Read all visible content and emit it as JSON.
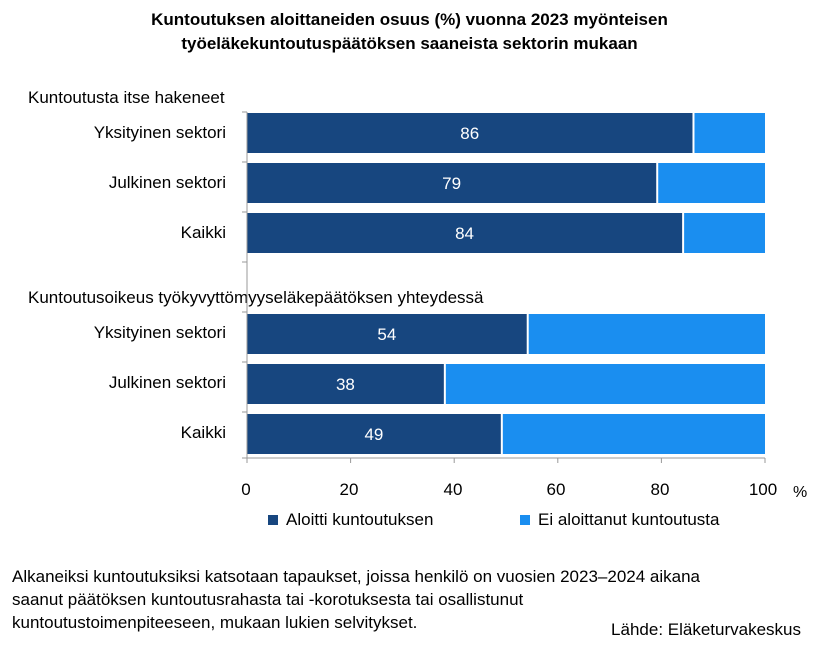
{
  "chart_data": {
    "type": "bar",
    "orientation": "horizontal",
    "stacked": true,
    "title": "Kuntoutuksen aloittaneiden osuus (%) vuonna 2023 myönteisen työeläkekuntoutuspäätöksen saaneista sektorin mukaan",
    "title_lines": [
      "Kuntoutuksen aloittaneiden osuus (%) vuonna 2023 myönteisen",
      "työeläkekuntoutuspäätöksen saaneista sektorin mukaan"
    ],
    "groups": [
      {
        "name": "Kuntoutusta itse hakeneet",
        "categories": [
          "Yksityinen sektori",
          "Julkinen sektori",
          "Kaikki"
        ],
        "aloitti": [
          86,
          79,
          84
        ],
        "ei_aloittanut": [
          14,
          21,
          16
        ]
      },
      {
        "name": "Kuntoutusoikeus työkyvyttömyyseläkepäätöksen yhteydessä",
        "categories": [
          "Yksityinen sektori",
          "Julkinen sektori",
          "Kaikki"
        ],
        "aloitti": [
          54,
          38,
          49
        ],
        "ei_aloittanut": [
          46,
          62,
          51
        ]
      }
    ],
    "series": [
      {
        "name": "Aloitti kuntoutuksen",
        "color": "#17467f"
      },
      {
        "name": "Ei aloittanut kuntoutusta",
        "color": "#1a8ef0"
      }
    ],
    "xlim": [
      0,
      100
    ],
    "xticks": [
      "0",
      "20",
      "40",
      "60",
      "80",
      "100"
    ],
    "xunit": "%",
    "legend_position": "bottom"
  },
  "footnote_lines": [
    "Alkaneiksi kuntoutuksiksi katsotaan tapaukset, joissa henkilö on vuosien 2023–2024 aikana",
    "saanut päätöksen kuntoutusrahasta tai -korotuksesta tai osallistunut",
    "kuntoutustoimenpiteeseen, mukaan lukien selvitykset."
  ],
  "source": "Lähde: Eläketurvakeskus"
}
